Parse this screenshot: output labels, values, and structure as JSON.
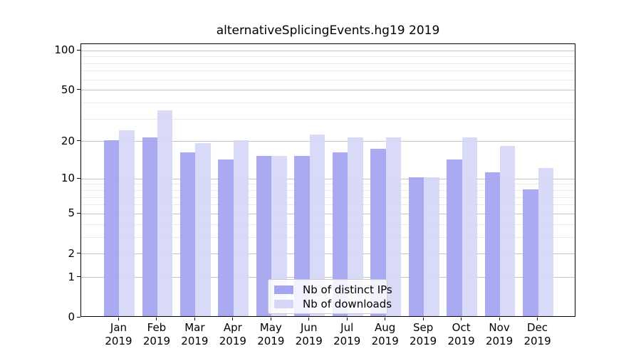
{
  "chart_data": {
    "type": "bar",
    "title": "alternativeSplicingEvents.hg19 2019",
    "categories": [
      "Jan",
      "Feb",
      "Mar",
      "Apr",
      "May",
      "Jun",
      "Jul",
      "Aug",
      "Sep",
      "Oct",
      "Nov",
      "Dec"
    ],
    "year_label": "2019",
    "series": [
      {
        "name": "Nb of distinct IPs",
        "color": "#a4a4f2",
        "values": [
          20,
          21,
          16,
          14,
          15,
          15,
          16,
          17,
          10,
          14,
          11,
          8
        ]
      },
      {
        "name": "Nb of downloads",
        "color": "#d6d6f8",
        "values": [
          24,
          34,
          19,
          20,
          15,
          22,
          21,
          21,
          10,
          21,
          18,
          12
        ]
      }
    ],
    "yticks": [
      0,
      1,
      2,
      5,
      10,
      20,
      50,
      100
    ],
    "ylim": [
      0,
      112
    ],
    "yscale": "log(1+x)",
    "grid": "on",
    "legend_position": "lower center"
  }
}
